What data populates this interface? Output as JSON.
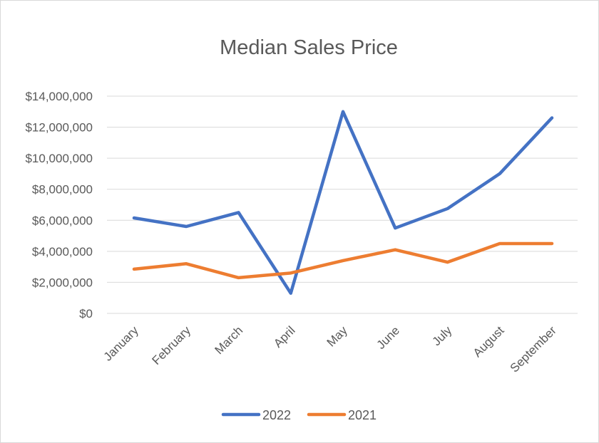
{
  "chart_data": {
    "type": "line",
    "title": "Median Sales Price",
    "xlabel": "",
    "ylabel": "",
    "categories": [
      "January",
      "February",
      "March",
      "April",
      "May",
      "June",
      "July",
      "August",
      "September"
    ],
    "series": [
      {
        "name": "2022",
        "color": "#4472C4",
        "values": [
          6150000,
          5600000,
          6500000,
          1300000,
          13000000,
          5500000,
          6750000,
          9000000,
          12600000
        ]
      },
      {
        "name": "2021",
        "color": "#ED7D31",
        "values": [
          2850000,
          3200000,
          2300000,
          2600000,
          3400000,
          4100000,
          3300000,
          4500000,
          4500000
        ]
      }
    ],
    "ylim": [
      0,
      14000000
    ],
    "y_ticks": [
      0,
      2000000,
      4000000,
      6000000,
      8000000,
      10000000,
      12000000,
      14000000
    ],
    "y_tick_labels": [
      "$0",
      "$2,000,000",
      "$4,000,000",
      "$6,000,000",
      "$8,000,000",
      "$10,000,000",
      "$12,000,000",
      "$14,000,000"
    ],
    "grid": true,
    "legend_position": "bottom",
    "gridline_color": "#D9D9D9",
    "text_color": "#595959"
  }
}
